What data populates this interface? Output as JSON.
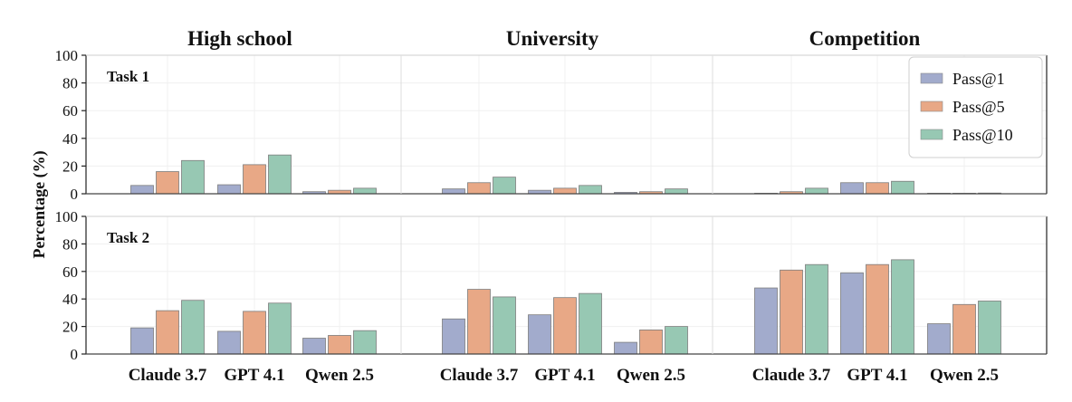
{
  "chart_data": {
    "type": "bar",
    "ylabel": "Percentage (%)",
    "ylim": [
      0,
      100
    ],
    "yticks": [
      0,
      20,
      40,
      60,
      80,
      100
    ],
    "groups": [
      "High school",
      "University",
      "Competition"
    ],
    "categories": [
      "Claude 3.7",
      "GPT 4.1",
      "Qwen 2.5"
    ],
    "legend": {
      "placement": "top-right",
      "items": [
        "Pass@1",
        "Pass@5",
        "Pass@10"
      ]
    },
    "colors": {
      "Pass@1": "#a2abcc",
      "Pass@5": "#e8a886",
      "Pass@10": "#97c8b3"
    },
    "rows": [
      {
        "label": "Task 1",
        "panels": [
          {
            "series": [
              {
                "name": "Pass@1",
                "values": [
                  6,
                  6.5,
                  1.5
                ]
              },
              {
                "name": "Pass@5",
                "values": [
                  16,
                  21,
                  2.5
                ]
              },
              {
                "name": "Pass@10",
                "values": [
                  24,
                  28,
                  4
                ]
              }
            ]
          },
          {
            "series": [
              {
                "name": "Pass@1",
                "values": [
                  3.5,
                  2.5,
                  1
                ]
              },
              {
                "name": "Pass@5",
                "values": [
                  8,
                  4,
                  1.5
                ]
              },
              {
                "name": "Pass@10",
                "values": [
                  12,
                  6,
                  3.5
                ]
              }
            ]
          },
          {
            "series": [
              {
                "name": "Pass@1",
                "values": [
                  0,
                  8,
                  0
                ]
              },
              {
                "name": "Pass@5",
                "values": [
                  1.5,
                  8,
                  0
                ]
              },
              {
                "name": "Pass@10",
                "values": [
                  4,
                  9,
                  0.5
                ]
              }
            ]
          }
        ]
      },
      {
        "label": "Task 2",
        "panels": [
          {
            "series": [
              {
                "name": "Pass@1",
                "values": [
                  19,
                  16.5,
                  11.5
                ]
              },
              {
                "name": "Pass@5",
                "values": [
                  31.5,
                  31,
                  13.5
                ]
              },
              {
                "name": "Pass@10",
                "values": [
                  39,
                  37,
                  17
                ]
              }
            ]
          },
          {
            "series": [
              {
                "name": "Pass@1",
                "values": [
                  25.5,
                  28.5,
                  8.5
                ]
              },
              {
                "name": "Pass@5",
                "values": [
                  47,
                  41,
                  17.5
                ]
              },
              {
                "name": "Pass@10",
                "values": [
                  41.5,
                  44,
                  20
                ]
              }
            ]
          },
          {
            "series": [
              {
                "name": "Pass@1",
                "values": [
                  48,
                  59,
                  22
                ]
              },
              {
                "name": "Pass@5",
                "values": [
                  61,
                  65,
                  36
                ]
              },
              {
                "name": "Pass@10",
                "values": [
                  65,
                  68.5,
                  38.5
                ]
              }
            ]
          }
        ]
      }
    ]
  }
}
